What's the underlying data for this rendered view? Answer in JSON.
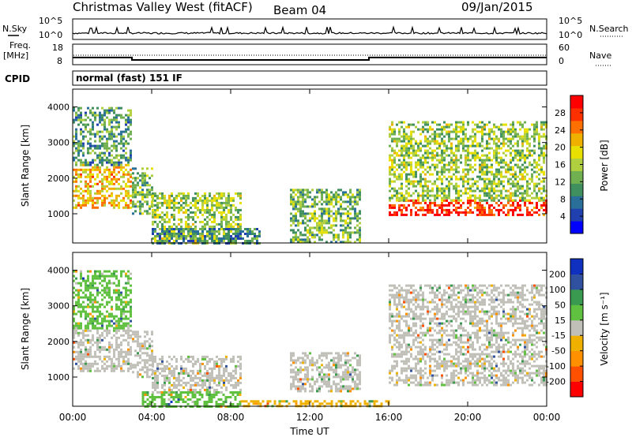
{
  "header": {
    "title": "Christmas Valley West (fitACF)",
    "beam": "Beam 04",
    "date": "09/Jan/2015"
  },
  "top_panels": {
    "nsky_label": "N.Sky",
    "nsearch_label": "N.Search",
    "nsky_ticks": [
      "10^5",
      "10^0"
    ],
    "nsky_right_ticks": [
      "10^5",
      "10^0"
    ],
    "freq_label": "Freq.",
    "freq_unit": "[MHz]",
    "freq_ticks": [
      "18",
      "8"
    ],
    "nave_label": "Nave",
    "nave_ticks": [
      "60",
      "0"
    ],
    "freq_series": {
      "x": [
        "00:00",
        "03:00",
        "03:00",
        "15:00",
        "15:00",
        "24:00"
      ],
      "y": [
        11.5,
        11.5,
        10.3,
        10.3,
        11.5,
        11.5
      ]
    },
    "cpid_label": "CPID",
    "cpid_text": "normal (fast) 151 IF"
  },
  "chart_data": [
    {
      "type": "heatmap",
      "name": "power",
      "ylabel": "Slant Range [km]",
      "yticks": [
        1000,
        2000,
        3000,
        4000
      ],
      "ylim": [
        180,
        4500
      ],
      "xticks": [
        "00:00",
        "04:00",
        "08:00",
        "12:00",
        "16:00",
        "20:00",
        "00:00"
      ],
      "xlim_hours": [
        0,
        24
      ],
      "colorbar": {
        "label": "Power [dB]",
        "ticks": [
          "28",
          "24",
          "20",
          "16",
          "12",
          "8",
          "4"
        ],
        "colors": [
          "#0000ff",
          "#2040b0",
          "#2a6f9a",
          "#3f8f5f",
          "#70b050",
          "#b0d040",
          "#e8e000",
          "#f0b000",
          "#ff7000",
          "#ff3000",
          "#ff0000"
        ]
      },
      "regions": [
        {
          "t": [
            0.0,
            3.0
          ],
          "r": [
            1200,
            2400
          ],
          "db": 20
        },
        {
          "t": [
            0.0,
            3.0
          ],
          "r": [
            2400,
            4000
          ],
          "db": 10
        },
        {
          "t": [
            3.0,
            4.0
          ],
          "r": [
            1000,
            2300
          ],
          "db": 12
        },
        {
          "t": [
            4.0,
            8.5
          ],
          "r": [
            200,
            1600
          ],
          "db": 14
        },
        {
          "t": [
            4.0,
            9.5
          ],
          "r": [
            200,
            600
          ],
          "db": 8
        },
        {
          "t": [
            11.0,
            14.5
          ],
          "r": [
            200,
            1700
          ],
          "db": 12
        },
        {
          "t": [
            16.0,
            24.0
          ],
          "r": [
            1000,
            1400
          ],
          "db": 28
        },
        {
          "t": [
            16.0,
            24.0
          ],
          "r": [
            1400,
            3600
          ],
          "db": 14
        }
      ]
    },
    {
      "type": "heatmap",
      "name": "velocity",
      "ylabel": "Slant Range [km]",
      "yticks": [
        1000,
        2000,
        3000,
        4000
      ],
      "ylim": [
        180,
        4500
      ],
      "xticks": [
        "00:00",
        "04:00",
        "08:00",
        "12:00",
        "16:00",
        "20:00",
        "00:00"
      ],
      "xlim_hours": [
        0,
        24
      ],
      "xlabel": "Time UT",
      "colorbar": {
        "label": "Velocity [m s⁻¹]",
        "ticks": [
          "200",
          "100",
          "50",
          "15",
          "-15",
          "-50",
          "-100",
          "-200"
        ],
        "colors": [
          "#ff0000",
          "#ff5000",
          "#ff9000",
          "#f0b000",
          "#c0c0b8",
          "#60c040",
          "#3a9a50",
          "#3050a0",
          "#1030c0"
        ]
      },
      "regions": [
        {
          "t": [
            0.0,
            3.0
          ],
          "r": [
            1200,
            2400
          ],
          "v": 0
        },
        {
          "t": [
            0.0,
            3.0
          ],
          "r": [
            2400,
            4000
          ],
          "v": -40
        },
        {
          "t": [
            3.0,
            4.0
          ],
          "r": [
            1000,
            2300
          ],
          "v": 0
        },
        {
          "t": [
            4.0,
            8.5
          ],
          "r": [
            600,
            1600
          ],
          "v": 0
        },
        {
          "t": [
            3.5,
            8.5
          ],
          "r": [
            200,
            600
          ],
          "v": -60
        },
        {
          "t": [
            11.0,
            14.5
          ],
          "r": [
            600,
            1700
          ],
          "v": 0
        },
        {
          "t": [
            8.5,
            16.0
          ],
          "r": [
            200,
            350
          ],
          "v": 40
        },
        {
          "t": [
            16.0,
            24.0
          ],
          "r": [
            800,
            3600
          ],
          "v": 0
        }
      ]
    }
  ]
}
